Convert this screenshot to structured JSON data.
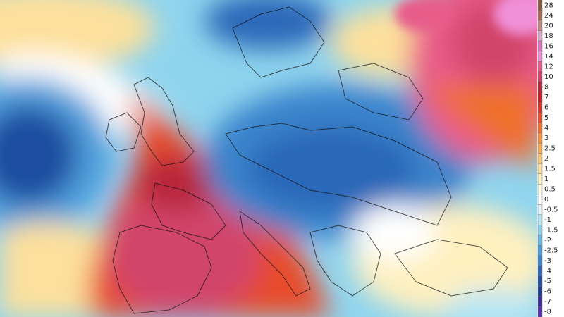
{
  "legend": {
    "levels": [
      {
        "value": 28,
        "color": "#8b5a3c"
      },
      {
        "value": 24,
        "color": "#a86c55"
      },
      {
        "value": 20,
        "color": "#c08a80"
      },
      {
        "value": 18,
        "color": "#d8a8c8"
      },
      {
        "value": 16,
        "color": "#e070c0"
      },
      {
        "value": 14,
        "color": "#f090d8"
      },
      {
        "value": 12,
        "color": "#e85c8a"
      },
      {
        "value": 10,
        "color": "#d2446a"
      },
      {
        "value": 8,
        "color": "#b8283a"
      },
      {
        "value": 7,
        "color": "#c81e28"
      },
      {
        "value": 6,
        "color": "#d8342a"
      },
      {
        "value": 5,
        "color": "#e84c2c"
      },
      {
        "value": 4,
        "color": "#f0702c"
      },
      {
        "value": 3,
        "color": "#f59340"
      },
      {
        "value": 2.5,
        "color": "#f8ae58"
      },
      {
        "value": 2,
        "color": "#fbc878"
      },
      {
        "value": 1.5,
        "color": "#fde09c"
      },
      {
        "value": 1,
        "color": "#fff0c0"
      },
      {
        "value": 0.5,
        "color": "#fffbe0"
      },
      {
        "value": 0,
        "color": "#ffffff"
      },
      {
        "value": -0.5,
        "color": "#e0f4fa"
      },
      {
        "value": -1,
        "color": "#b8e6f4"
      },
      {
        "value": -1.5,
        "color": "#8fd4ee"
      },
      {
        "value": -2,
        "color": "#6ab8e6"
      },
      {
        "value": -2.5,
        "color": "#4f9fdc"
      },
      {
        "value": -3,
        "color": "#3a84cc"
      },
      {
        "value": -4,
        "color": "#2c68b8"
      },
      {
        "value": -5,
        "color": "#1f4ea0"
      },
      {
        "value": -6,
        "color": "#203c90"
      },
      {
        "value": -7,
        "color": "#3a2c98"
      },
      {
        "value": -8,
        "color": "#5a30b0"
      }
    ]
  }
}
